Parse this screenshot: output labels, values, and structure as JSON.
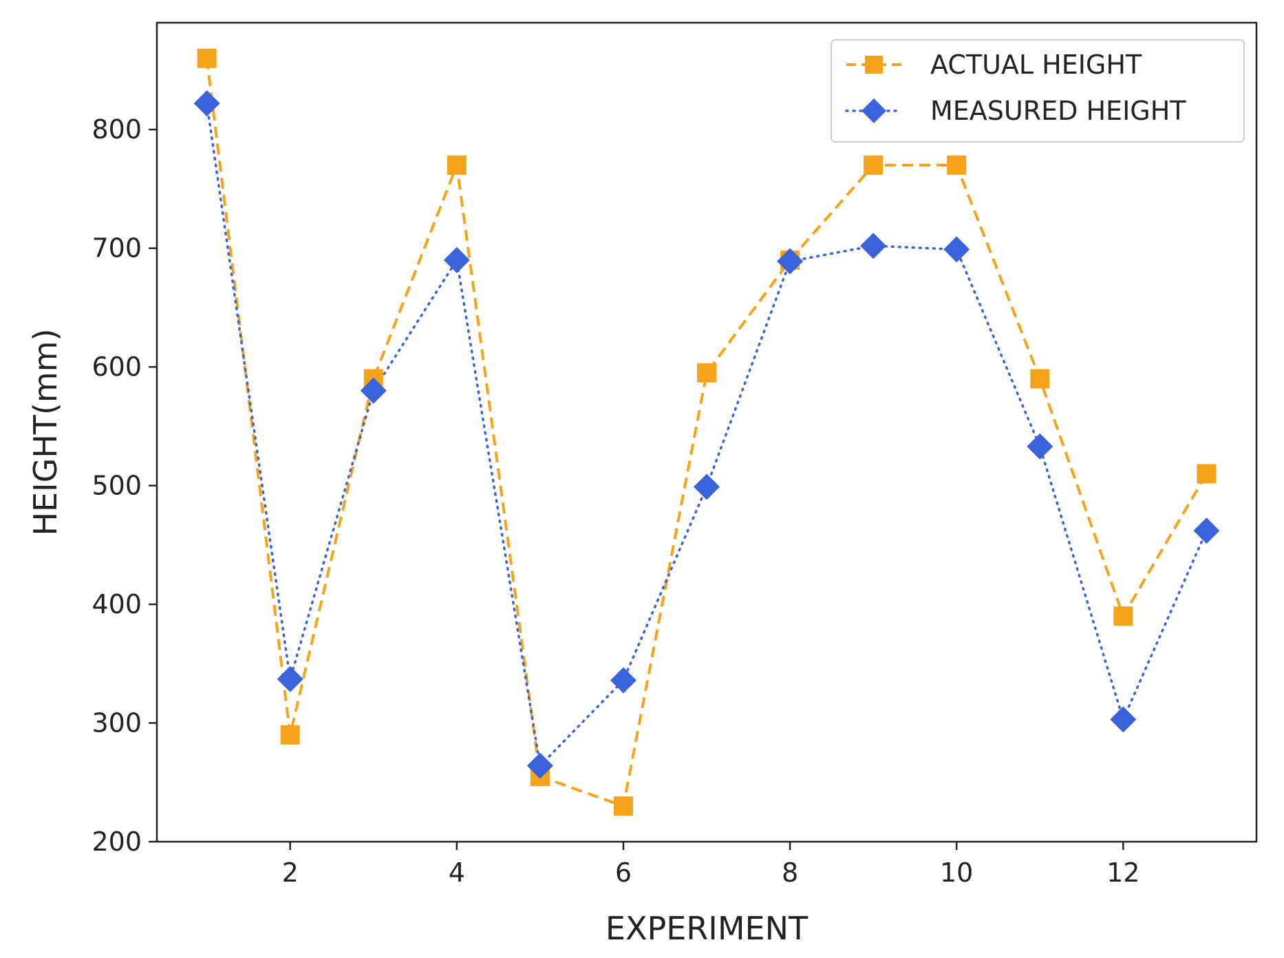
{
  "chart_data": {
    "type": "line",
    "title": "",
    "xlabel": "EXPERIMENT",
    "ylabel": "HEIGHT(mm)",
    "x": [
      1,
      2,
      3,
      4,
      5,
      6,
      7,
      8,
      9,
      10,
      11,
      12,
      13
    ],
    "xlim": [
      0.4,
      13.6
    ],
    "ylim": [
      200,
      890
    ],
    "xticks": [
      2,
      4,
      6,
      8,
      10,
      12
    ],
    "yticks": [
      200,
      300,
      400,
      500,
      600,
      700,
      800
    ],
    "grid": false,
    "legend_position": "top-right",
    "series": [
      {
        "name": "ACTUAL HEIGHT",
        "color": "#F5A31A",
        "line_style": "dashed",
        "marker": "square",
        "values": [
          860,
          290,
          590,
          770,
          255,
          230,
          595,
          690,
          770,
          770,
          590,
          390,
          510
        ]
      },
      {
        "name": "MEASURED HEIGHT",
        "color": "#3A62DB",
        "line_style": "dotted",
        "marker": "diamond",
        "values": [
          822,
          337,
          580,
          690,
          264,
          336,
          499,
          689,
          702,
          699,
          533,
          303,
          462
        ]
      }
    ]
  }
}
